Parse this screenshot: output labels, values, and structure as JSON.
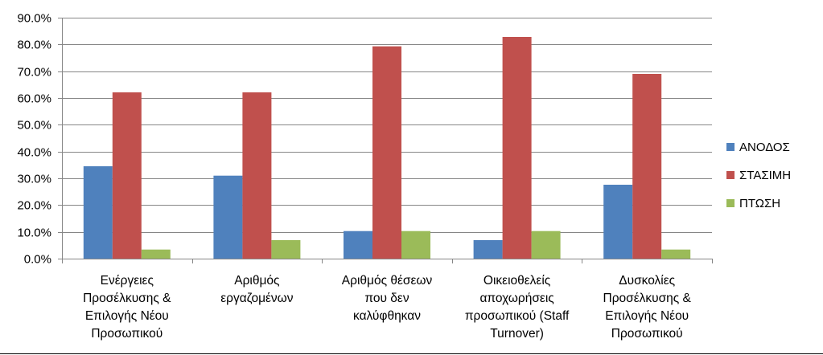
{
  "chart_data": {
    "type": "bar",
    "title": "",
    "xlabel": "",
    "ylabel": "",
    "ylim": [
      0,
      0.9
    ],
    "y_ticks": [
      "0.0%",
      "10.0%",
      "20.0%",
      "30.0%",
      "40.0%",
      "50.0%",
      "60.0%",
      "70.0%",
      "80.0%",
      "90.0%"
    ],
    "grid": true,
    "legend_position": "right",
    "categories": [
      [
        "Ενέργειες",
        "Προσέλκυσης &",
        "Επιλογής Νέου",
        "Προσωπικού"
      ],
      [
        "Αριθμός",
        "εργαζομένων"
      ],
      [
        "Αριθμός θέσεων",
        "που δεν",
        "καλύφθηκαν"
      ],
      [
        "Οικειοθελείς",
        "αποχωρήσεις",
        "προσωπικού (Staff",
        "Turnover)"
      ],
      [
        "Δυσκολίες",
        "Προσέλκυσης &",
        "Επιλογής Νέου",
        "Προσωπικού"
      ]
    ],
    "series": [
      {
        "name": "ΑΝΟΔΟΣ",
        "color": "#4F81BD",
        "values": [
          0.345,
          0.31,
          0.103,
          0.069,
          0.276
        ]
      },
      {
        "name": "ΣΤΑΣΙΜΗ",
        "color": "#C0504D",
        "values": [
          0.621,
          0.621,
          0.793,
          0.828,
          0.69
        ]
      },
      {
        "name": "ΠΤΩΣΗ",
        "color": "#9BBB59",
        "values": [
          0.034,
          0.069,
          0.103,
          0.103,
          0.034
        ]
      }
    ]
  }
}
